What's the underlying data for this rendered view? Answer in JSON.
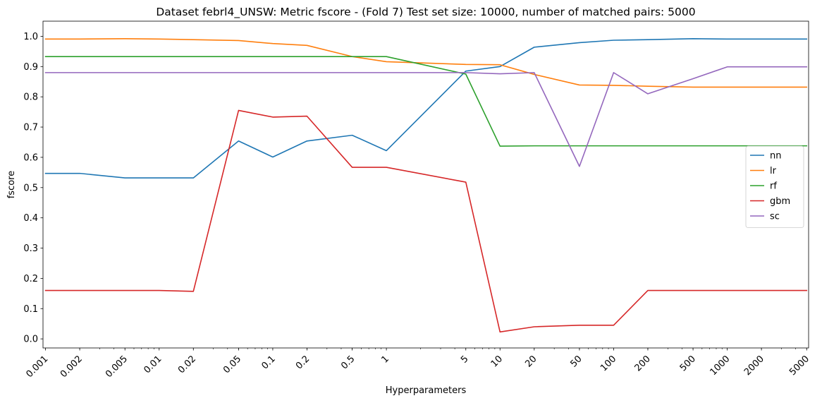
{
  "chart_data": {
    "type": "line",
    "title": "Dataset febrl4_UNSW: Metric fscore - (Fold 7) Test set size: 10000, number of matched pairs: 5000",
    "xlabel": "Hyperparameters",
    "ylabel": "fscore",
    "x_scale": "log",
    "xlim": [
      0.00095,
      5200
    ],
    "ylim": [
      -0.03,
      1.05
    ],
    "x": [
      0.001,
      0.002,
      0.005,
      0.01,
      0.02,
      0.05,
      0.1,
      0.2,
      0.5,
      1,
      5,
      10,
      20,
      50,
      100,
      200,
      500,
      1000,
      2000,
      5000
    ],
    "x_tick_labels": [
      "0.001",
      "0.002",
      "0.005",
      "0.01",
      "0.02",
      "0.05",
      "0.1",
      "0.2",
      "0.5",
      "1",
      "5",
      "10",
      "20",
      "50",
      "100",
      "200",
      "500",
      "1000",
      "2000",
      "5000"
    ],
    "y_ticks": [
      0.0,
      0.1,
      0.2,
      0.3,
      0.4,
      0.5,
      0.6,
      0.7,
      0.8,
      0.9,
      1.0
    ],
    "y_tick_labels": [
      "0.0",
      "0.1",
      "0.2",
      "0.3",
      "0.4",
      "0.5",
      "0.6",
      "0.7",
      "0.8",
      "0.9",
      "1.0"
    ],
    "grid": false,
    "legend_position": "center-right",
    "series": [
      {
        "name": "nn",
        "color": "#1f77b4",
        "values": [
          0.547,
          0.547,
          0.532,
          0.532,
          0.532,
          0.654,
          0.601,
          0.654,
          0.673,
          0.622,
          0.885,
          0.9,
          0.964,
          0.979,
          0.987,
          0.989,
          0.992,
          0.991,
          0.991,
          0.991
        ]
      },
      {
        "name": "lr",
        "color": "#ff7f0e",
        "values": [
          0.991,
          0.991,
          0.992,
          0.991,
          0.989,
          0.986,
          0.976,
          0.97,
          0.933,
          0.916,
          0.907,
          0.906,
          0.874,
          0.839,
          0.838,
          0.835,
          0.832,
          0.832,
          0.832,
          0.832
        ]
      },
      {
        "name": "rf",
        "color": "#2ca02c",
        "values": [
          0.933,
          0.933,
          0.933,
          0.933,
          0.933,
          0.933,
          0.933,
          0.933,
          0.933,
          0.933,
          0.875,
          0.637,
          0.638,
          0.638,
          0.638,
          0.638,
          0.638,
          0.638,
          0.638,
          0.638
        ]
      },
      {
        "name": "gbm",
        "color": "#d62728",
        "values": [
          0.16,
          0.16,
          0.16,
          0.16,
          0.157,
          0.755,
          0.733,
          0.736,
          0.567,
          0.567,
          0.518,
          0.023,
          0.04,
          0.045,
          0.045,
          0.16,
          0.16,
          0.16,
          0.16,
          0.16
        ]
      },
      {
        "name": "sc",
        "color": "#9467bd",
        "values": [
          0.88,
          0.88,
          0.88,
          0.88,
          0.88,
          0.88,
          0.88,
          0.88,
          0.88,
          0.88,
          0.88,
          0.876,
          0.88,
          0.57,
          0.88,
          0.81,
          0.86,
          0.899,
          0.899,
          0.899
        ]
      }
    ]
  }
}
